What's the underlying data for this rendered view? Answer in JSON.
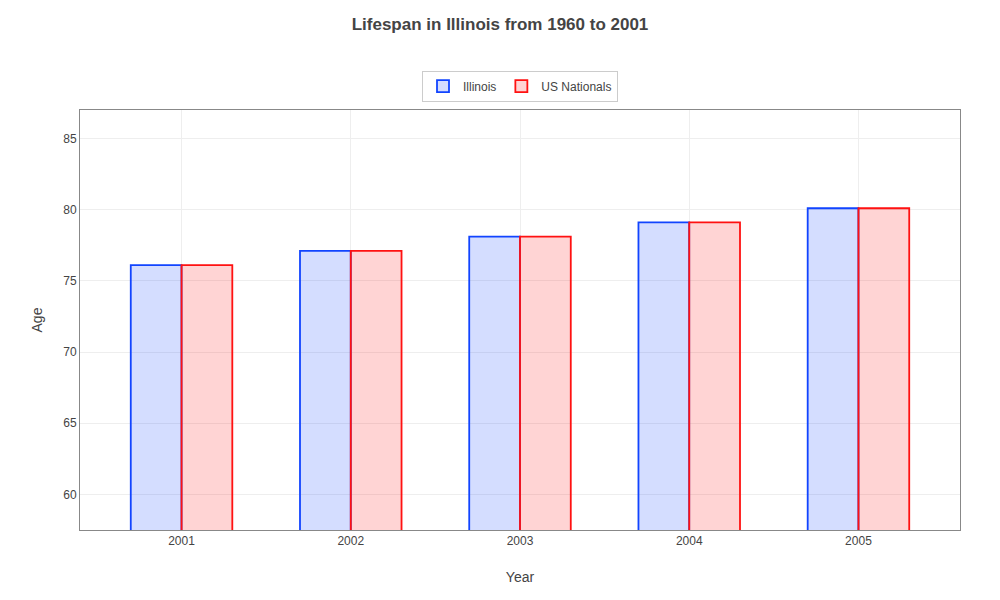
{
  "chart_data": {
    "type": "bar",
    "title": "Lifespan in Illinois from 1960 to 2001",
    "x_label": "Year",
    "y_label": "Age",
    "categories": [
      "2001",
      "2002",
      "2003",
      "2004",
      "2005"
    ],
    "series": [
      {
        "name": "Illinois",
        "color": "#1144ff",
        "values": [
          76.1,
          77.1,
          78.1,
          79.1,
          80.1
        ]
      },
      {
        "name": "US Nationals",
        "color": "#ff1111",
        "values": [
          76.1,
          77.1,
          78.1,
          79.1,
          80.1
        ]
      }
    ],
    "ylim": [
      57.5,
      87
    ],
    "yticks": [
      60,
      65,
      70,
      75,
      80,
      85
    ],
    "grid": true,
    "legend": "top"
  }
}
